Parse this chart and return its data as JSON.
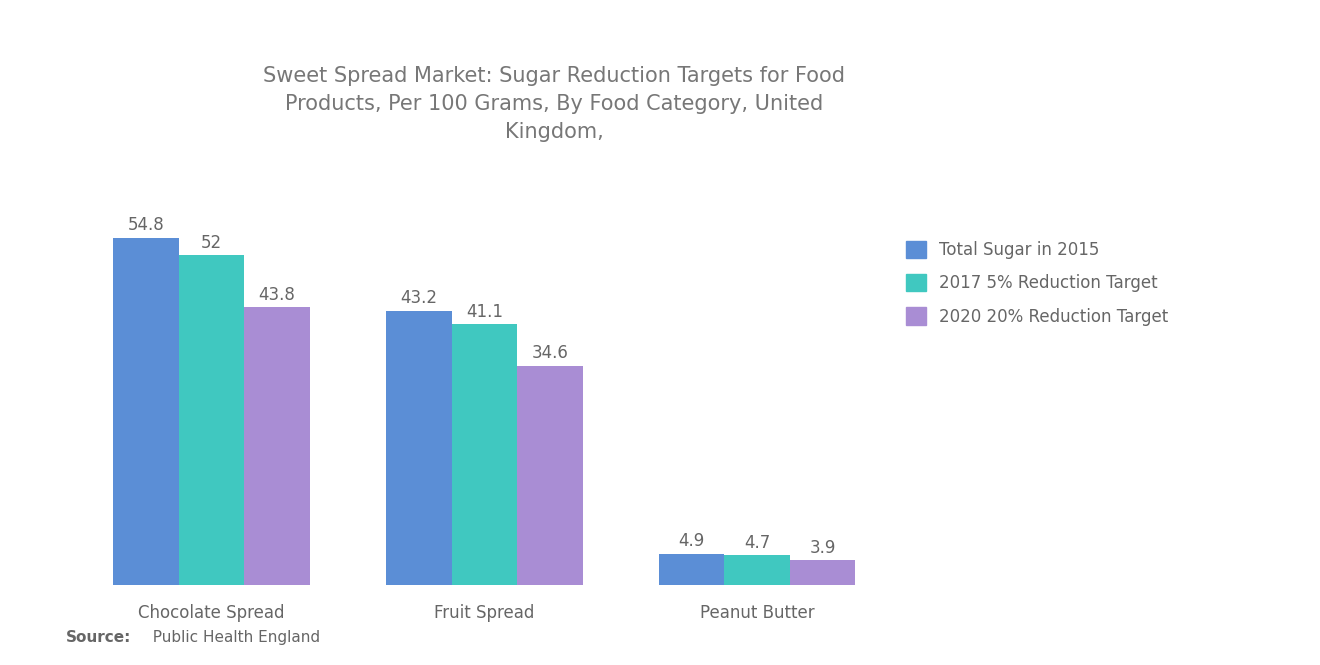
{
  "title": "Sweet Spread Market: Sugar Reduction Targets for Food\nProducts, Per 100 Grams, By Food Category, United\nKingdom,",
  "categories": [
    "Chocolate Spread",
    "Fruit Spread",
    "Peanut Butter"
  ],
  "series": [
    {
      "label": "Total Sugar in 2015",
      "color": "#5B8ED6",
      "values": [
        54.8,
        43.2,
        4.9
      ]
    },
    {
      "label": "2017 5% Reduction Target",
      "color": "#40C8C0",
      "values": [
        52,
        41.1,
        4.7
      ]
    },
    {
      "label": "2020 20% Reduction Target",
      "color": "#A98DD4",
      "values": [
        43.8,
        34.6,
        3.9
      ]
    }
  ],
  "value_labels": [
    [
      "54.8",
      "52",
      "43.8"
    ],
    [
      "43.2",
      "41.1",
      "34.6"
    ],
    [
      "4.9",
      "4.7",
      "3.9"
    ]
  ],
  "ylim": [
    0,
    65
  ],
  "source_bold": "Source:",
  "source_rest": "  Public Health England",
  "background_color": "#FFFFFF",
  "title_color": "#777777",
  "label_color": "#666666",
  "bar_width": 0.18,
  "value_fontsize": 12,
  "category_fontsize": 12,
  "title_fontsize": 15,
  "legend_fontsize": 12,
  "source_fontsize": 11
}
